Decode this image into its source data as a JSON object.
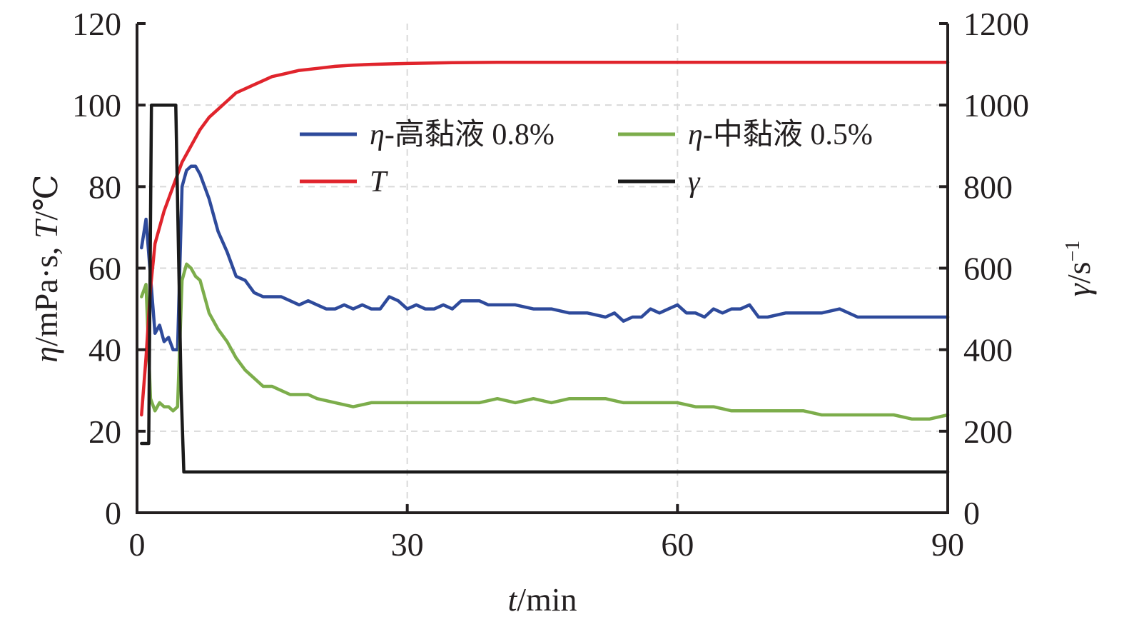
{
  "chart_data": {
    "type": "line",
    "xlabel": "t/min",
    "ylabel_left": "η/mPa·s, T/℃",
    "ylabel_right": "γ/s⁻¹",
    "xlim": [
      0,
      90
    ],
    "ylim_left": [
      0,
      120
    ],
    "ylim_right": [
      0,
      1200
    ],
    "x_ticks": [
      "0",
      "30",
      "60",
      "90"
    ],
    "y_left_ticks": [
      "0",
      "20",
      "40",
      "60",
      "80",
      "100",
      "120"
    ],
    "y_right_ticks": [
      "0",
      "200",
      "400",
      "600",
      "800",
      "1000",
      "1200"
    ],
    "grid": true,
    "legend_position": "top-center",
    "series": [
      {
        "name": "η-高黏液 0.8%",
        "color": "#2e4a9b",
        "axis": "left",
        "x": [
          0.5,
          1,
          1.5,
          2,
          2.5,
          3,
          3.5,
          4,
          4.5,
          5,
          5.5,
          6,
          6.5,
          7,
          8,
          9,
          10,
          11,
          12,
          13,
          14,
          15,
          16,
          17,
          18,
          19,
          20,
          21,
          22,
          23,
          24,
          25,
          26,
          27,
          28,
          29,
          30,
          31,
          32,
          33,
          34,
          35,
          36,
          37,
          38,
          39,
          40,
          42,
          44,
          46,
          48,
          50,
          52,
          53,
          54,
          55,
          56,
          57,
          58,
          59,
          60,
          61,
          62,
          63,
          64,
          65,
          66,
          67,
          68,
          69,
          70,
          72,
          74,
          76,
          78,
          80,
          82,
          84,
          86,
          88,
          90
        ],
        "y": [
          65,
          72,
          58,
          44,
          46,
          42,
          43,
          40,
          40,
          80,
          84,
          85,
          85,
          83,
          77,
          69,
          64,
          58,
          57,
          54,
          53,
          53,
          53,
          52,
          51,
          52,
          51,
          50,
          50,
          51,
          50,
          51,
          50,
          50,
          53,
          52,
          50,
          51,
          50,
          50,
          51,
          50,
          52,
          52,
          52,
          51,
          51,
          51,
          50,
          50,
          49,
          49,
          48,
          49,
          47,
          48,
          48,
          50,
          49,
          50,
          51,
          49,
          49,
          48,
          50,
          49,
          50,
          50,
          51,
          48,
          48,
          49,
          49,
          49,
          50,
          48,
          48,
          48,
          48,
          48,
          48
        ]
      },
      {
        "name": "η-中黏液 0.5%",
        "color": "#7cad4b",
        "axis": "left",
        "x": [
          0.5,
          1,
          1.5,
          2,
          2.5,
          3,
          3.5,
          4,
          4.5,
          5,
          5.5,
          6,
          6.5,
          7,
          8,
          9,
          10,
          11,
          12,
          13,
          14,
          15,
          16,
          17,
          18,
          19,
          20,
          22,
          24,
          26,
          28,
          30,
          32,
          34,
          36,
          38,
          40,
          42,
          44,
          46,
          48,
          50,
          52,
          54,
          56,
          58,
          60,
          62,
          64,
          66,
          68,
          70,
          72,
          74,
          76,
          78,
          80,
          82,
          84,
          86,
          88,
          90
        ],
        "y": [
          53,
          56,
          28,
          25,
          27,
          26,
          26,
          25,
          26,
          57,
          61,
          60,
          58,
          57,
          49,
          45,
          42,
          38,
          35,
          33,
          31,
          31,
          30,
          29,
          29,
          29,
          28,
          27,
          26,
          27,
          27,
          27,
          27,
          27,
          27,
          27,
          28,
          27,
          28,
          27,
          28,
          28,
          28,
          27,
          27,
          27,
          27,
          26,
          26,
          25,
          25,
          25,
          25,
          25,
          24,
          24,
          24,
          24,
          24,
          23,
          23,
          24
        ]
      },
      {
        "name": "T",
        "color": "#e0242c",
        "axis": "left",
        "x": [
          0.5,
          1,
          1.5,
          2,
          3,
          4,
          5,
          6,
          7,
          8,
          9,
          10,
          11,
          12,
          13,
          14,
          15,
          16,
          18,
          20,
          22,
          24,
          26,
          28,
          30,
          35,
          40,
          50,
          60,
          70,
          80,
          90
        ],
        "y": [
          24,
          38,
          55,
          66,
          74,
          80,
          86,
          90,
          94,
          97,
          99,
          101,
          103,
          104,
          105,
          106,
          107,
          107.5,
          108.5,
          109,
          109.5,
          109.8,
          110,
          110.1,
          110.2,
          110.4,
          110.5,
          110.5,
          110.5,
          110.5,
          110.5,
          110.5
        ]
      },
      {
        "name": "γ",
        "color": "#1a1a1a",
        "axis": "right",
        "x": [
          0.5,
          1.3,
          1.6,
          2,
          4.3,
          4.9,
          5.2,
          90
        ],
        "y": [
          170,
          170,
          1000,
          1000,
          1000,
          300,
          100,
          100
        ]
      }
    ]
  }
}
